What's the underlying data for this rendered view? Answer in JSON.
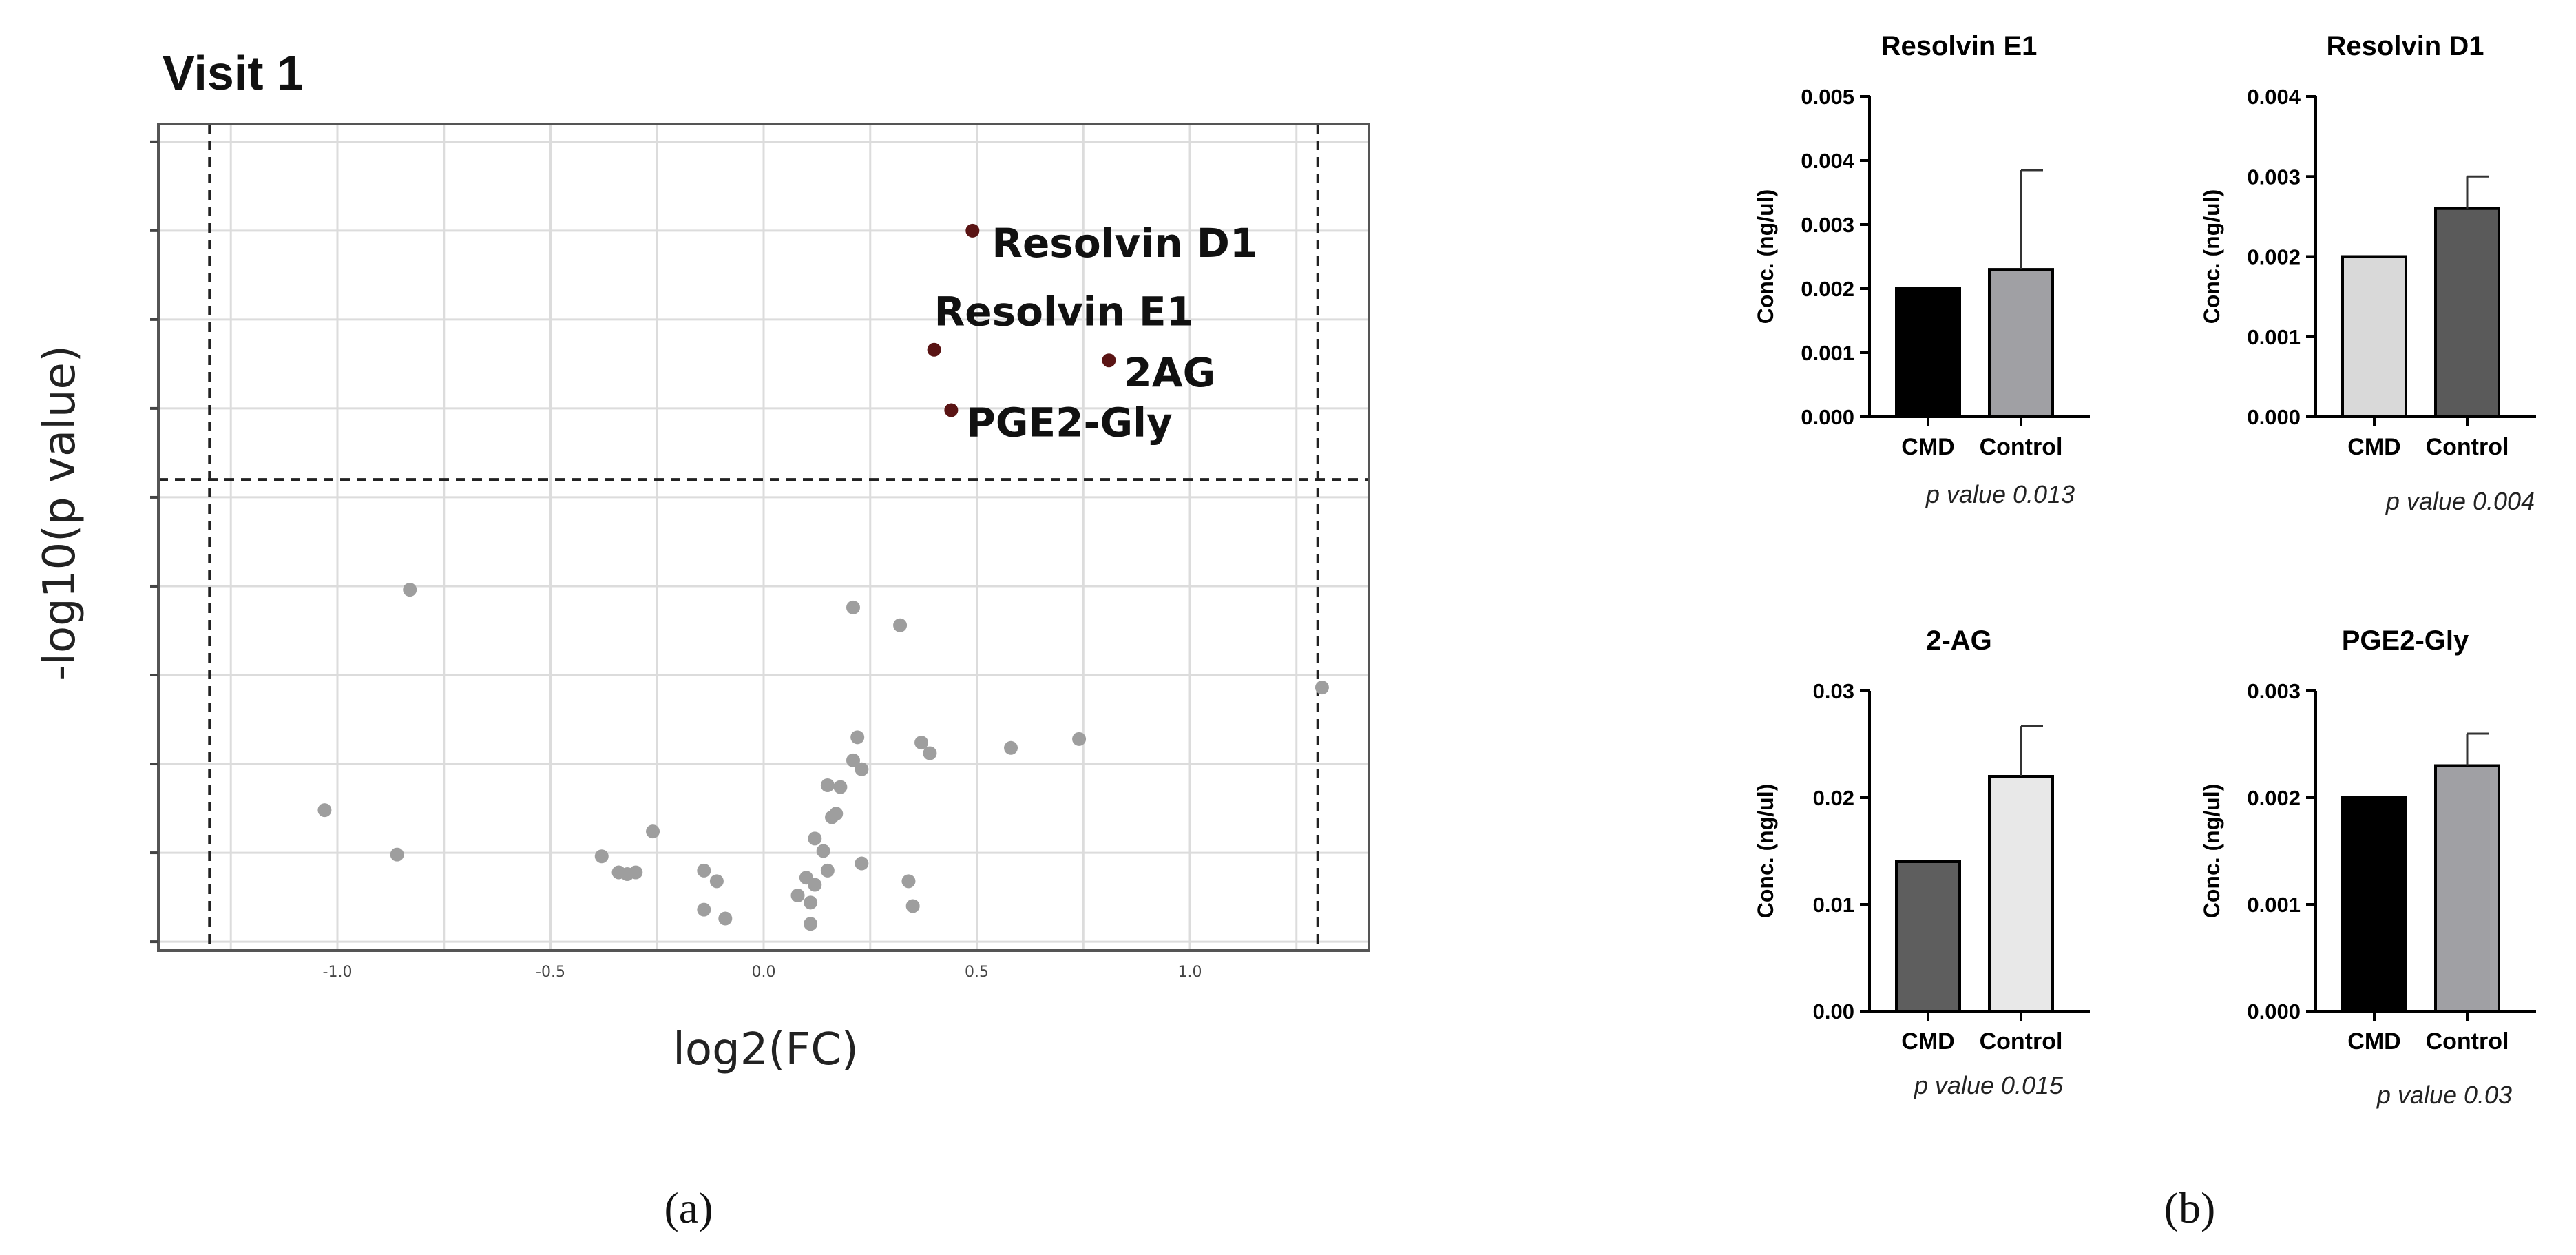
{
  "chart_data": [
    {
      "type": "scatter",
      "title": "Visit 1",
      "xlabel": "log2(FC)",
      "ylabel": "-log10(p value)",
      "xlim": [
        -1.42,
        1.42
      ],
      "ylim": [
        -0.05,
        4.6
      ],
      "xticks": [
        -1.0,
        -0.5,
        0.0,
        0.5,
        1.0
      ],
      "xtick_labels": [
        "-1.0",
        "-0.5",
        "0.0",
        "0.5",
        "1.0"
      ],
      "yticks": [
        0,
        0.5,
        1.0,
        1.5,
        2.0,
        2.5,
        3.0,
        3.5,
        4.0,
        4.5
      ],
      "vlines": [
        -1.3,
        1.3
      ],
      "hline": 2.6,
      "grid": true,
      "highlight_color": "#5a1414",
      "point_color": "#9e9e9e",
      "highlighted": [
        {
          "name": "Resolvin D1",
          "label": "Resolvin D1",
          "x": 0.49,
          "y": 4.0
        },
        {
          "name": "Resolvin E1",
          "label": "Resolvin E1",
          "x": 0.4,
          "y": 3.33
        },
        {
          "name": "2AG",
          "label": "2AG",
          "x": 0.81,
          "y": 3.27
        },
        {
          "name": "PGE2-Gly",
          "label": "PGE2-Gly",
          "x": 0.44,
          "y": 2.99
        }
      ],
      "points": [
        {
          "x": -0.83,
          "y": 1.98
        },
        {
          "x": -1.03,
          "y": 0.74
        },
        {
          "x": -0.86,
          "y": 0.49
        },
        {
          "x": -0.26,
          "y": 0.62
        },
        {
          "x": -0.38,
          "y": 0.48
        },
        {
          "x": -0.34,
          "y": 0.39
        },
        {
          "x": -0.32,
          "y": 0.38
        },
        {
          "x": -0.3,
          "y": 0.39
        },
        {
          "x": -0.14,
          "y": 0.4
        },
        {
          "x": -0.11,
          "y": 0.34
        },
        {
          "x": -0.14,
          "y": 0.18
        },
        {
          "x": -0.09,
          "y": 0.13
        },
        {
          "x": 0.21,
          "y": 1.88
        },
        {
          "x": 0.32,
          "y": 1.78
        },
        {
          "x": 0.22,
          "y": 1.15
        },
        {
          "x": 0.21,
          "y": 1.02
        },
        {
          "x": 0.23,
          "y": 0.97
        },
        {
          "x": 0.37,
          "y": 1.12
        },
        {
          "x": 0.39,
          "y": 1.06
        },
        {
          "x": 0.58,
          "y": 1.09
        },
        {
          "x": 0.74,
          "y": 1.14
        },
        {
          "x": 1.31,
          "y": 1.43
        },
        {
          "x": 0.15,
          "y": 0.88
        },
        {
          "x": 0.18,
          "y": 0.87
        },
        {
          "x": 0.17,
          "y": 0.72
        },
        {
          "x": 0.16,
          "y": 0.7
        },
        {
          "x": 0.12,
          "y": 0.58
        },
        {
          "x": 0.14,
          "y": 0.51
        },
        {
          "x": 0.15,
          "y": 0.4
        },
        {
          "x": 0.1,
          "y": 0.36
        },
        {
          "x": 0.12,
          "y": 0.32
        },
        {
          "x": 0.08,
          "y": 0.26
        },
        {
          "x": 0.11,
          "y": 0.22
        },
        {
          "x": 0.23,
          "y": 0.44
        },
        {
          "x": 0.34,
          "y": 0.34
        },
        {
          "x": 0.35,
          "y": 0.2
        },
        {
          "x": 0.11,
          "y": 0.1
        }
      ]
    },
    {
      "type": "bar",
      "title": "Resolvin E1",
      "categories": [
        "CMD",
        "Control"
      ],
      "values": [
        0.002,
        0.0023
      ],
      "errors": [
        0,
        0.00155
      ],
      "colors": [
        "#000000",
        "#a0a0a4"
      ],
      "ylabel": "Conc. (ng/ul)",
      "ylim": [
        0,
        0.005
      ],
      "yticks": [
        0,
        0.001,
        0.002,
        0.003,
        0.004,
        0.005
      ],
      "ytick_labels": [
        "0.000",
        "0.001",
        "0.002",
        "0.003",
        "0.004",
        "0.005"
      ],
      "annotation": "p value 0.013"
    },
    {
      "type": "bar",
      "title": "Resolvin D1",
      "categories": [
        "CMD",
        "Control"
      ],
      "values": [
        0.002,
        0.0026
      ],
      "errors": [
        0,
        0.0004
      ],
      "colors": [
        "#d9d9d9",
        "#5a5a5a"
      ],
      "ylabel": "Conc. (ng/ul)",
      "ylim": [
        0,
        0.004
      ],
      "yticks": [
        0,
        0.001,
        0.002,
        0.003,
        0.004
      ],
      "ytick_labels": [
        "0.000",
        "0.001",
        "0.002",
        "0.003",
        "0.004"
      ],
      "annotation": "p value 0.004"
    },
    {
      "type": "bar",
      "title": "2-AG",
      "categories": [
        "CMD",
        "Control"
      ],
      "values": [
        0.014,
        0.022
      ],
      "errors": [
        0,
        0.0047
      ],
      "colors": [
        "#5e5e5e",
        "#e8e8e8"
      ],
      "ylabel": "Conc. (ng/ul)",
      "ylim": [
        0,
        0.03
      ],
      "yticks": [
        0,
        0.01,
        0.02,
        0.03
      ],
      "ytick_labels": [
        "0.00",
        "0.01",
        "0.02",
        "0.03"
      ],
      "annotation": "p value 0.015"
    },
    {
      "type": "bar",
      "title": "PGE2-Gly",
      "categories": [
        "CMD",
        "Control"
      ],
      "values": [
        0.002,
        0.0023
      ],
      "errors": [
        0,
        0.0003
      ],
      "colors": [
        "#000000",
        "#a0a0a4"
      ],
      "ylabel": "Conc. (ng/ul)",
      "ylim": [
        0,
        0.003
      ],
      "yticks": [
        0,
        0.001,
        0.002,
        0.003
      ],
      "ytick_labels": [
        "0.000",
        "0.001",
        "0.002",
        "0.003"
      ],
      "annotation": "p value 0.03"
    }
  ],
  "panels": {
    "a": "(a)",
    "b": "(b)"
  }
}
